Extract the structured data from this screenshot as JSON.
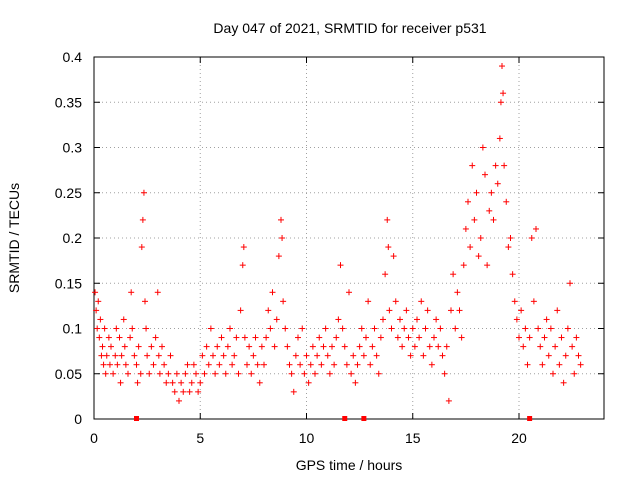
{
  "chart_data": {
    "type": "scatter",
    "title": "Day 047 of 2021, SRMTID for receiver p531",
    "xlabel": "GPS time / hours",
    "ylabel": "SRMTID / TECUs",
    "xlim": [
      0,
      24
    ],
    "ylim": [
      0,
      0.4
    ],
    "grid": true,
    "marker": "+",
    "marker_color": "#ff0000",
    "x_ticks": [
      0,
      5,
      10,
      15,
      20
    ],
    "x_tick_labels": [
      "0",
      "5",
      "10",
      "15",
      "20"
    ],
    "y_ticks": [
      0,
      0.05,
      0.1,
      0.15,
      0.2,
      0.25,
      0.3,
      0.35,
      0.4
    ],
    "y_tick_labels": [
      "0",
      "0.05",
      "0.1",
      "0.15",
      "0.2",
      "0.25",
      "0.3",
      "0.35",
      "0.4"
    ],
    "gap_markers_x": [
      2.0,
      11.8,
      12.7,
      20.5
    ],
    "series": [
      {
        "name": "SRMTID",
        "points": [
          [
            0.05,
            0.14
          ],
          [
            0.1,
            0.12
          ],
          [
            0.15,
            0.1
          ],
          [
            0.2,
            0.13
          ],
          [
            0.25,
            0.09
          ],
          [
            0.3,
            0.11
          ],
          [
            0.35,
            0.07
          ],
          [
            0.4,
            0.08
          ],
          [
            0.45,
            0.06
          ],
          [
            0.5,
            0.1
          ],
          [
            0.55,
            0.05
          ],
          [
            0.6,
            0.07
          ],
          [
            0.7,
            0.09
          ],
          [
            0.75,
            0.06
          ],
          [
            0.8,
            0.08
          ],
          [
            0.9,
            0.05
          ],
          [
            1.0,
            0.07
          ],
          [
            1.05,
            0.1
          ],
          [
            1.1,
            0.06
          ],
          [
            1.2,
            0.09
          ],
          [
            1.25,
            0.04
          ],
          [
            1.3,
            0.07
          ],
          [
            1.4,
            0.11
          ],
          [
            1.45,
            0.08
          ],
          [
            1.5,
            0.06
          ],
          [
            1.6,
            0.05
          ],
          [
            1.7,
            0.09
          ],
          [
            1.75,
            0.14
          ],
          [
            1.8,
            0.1
          ],
          [
            1.9,
            0.07
          ],
          [
            2.0,
            0.06
          ],
          [
            2.05,
            0.04
          ],
          [
            2.1,
            0.08
          ],
          [
            2.2,
            0.05
          ],
          [
            2.25,
            0.19
          ],
          [
            2.3,
            0.22
          ],
          [
            2.35,
            0.25
          ],
          [
            2.4,
            0.13
          ],
          [
            2.45,
            0.1
          ],
          [
            2.5,
            0.07
          ],
          [
            2.6,
            0.05
          ],
          [
            2.7,
            0.08
          ],
          [
            2.8,
            0.06
          ],
          [
            2.9,
            0.09
          ],
          [
            3.0,
            0.14
          ],
          [
            3.05,
            0.07
          ],
          [
            3.1,
            0.05
          ],
          [
            3.2,
            0.08
          ],
          [
            3.3,
            0.06
          ],
          [
            3.4,
            0.04
          ],
          [
            3.5,
            0.05
          ],
          [
            3.6,
            0.07
          ],
          [
            3.7,
            0.04
          ],
          [
            3.8,
            0.03
          ],
          [
            3.9,
            0.05
          ],
          [
            4.0,
            0.02
          ],
          [
            4.1,
            0.04
          ],
          [
            4.2,
            0.03
          ],
          [
            4.3,
            0.05
          ],
          [
            4.4,
            0.06
          ],
          [
            4.5,
            0.03
          ],
          [
            4.6,
            0.04
          ],
          [
            4.7,
            0.06
          ],
          [
            4.8,
            0.05
          ],
          [
            4.9,
            0.03
          ],
          [
            5.0,
            0.04
          ],
          [
            5.1,
            0.07
          ],
          [
            5.2,
            0.05
          ],
          [
            5.3,
            0.08
          ],
          [
            5.4,
            0.06
          ],
          [
            5.5,
            0.1
          ],
          [
            5.6,
            0.07
          ],
          [
            5.7,
            0.05
          ],
          [
            5.8,
            0.08
          ],
          [
            5.9,
            0.06
          ],
          [
            6.0,
            0.09
          ],
          [
            6.1,
            0.07
          ],
          [
            6.2,
            0.05
          ],
          [
            6.3,
            0.08
          ],
          [
            6.4,
            0.1
          ],
          [
            6.5,
            0.06
          ],
          [
            6.6,
            0.07
          ],
          [
            6.7,
            0.09
          ],
          [
            6.8,
            0.05
          ],
          [
            6.9,
            0.12
          ],
          [
            7.0,
            0.17
          ],
          [
            7.05,
            0.19
          ],
          [
            7.1,
            0.09
          ],
          [
            7.2,
            0.06
          ],
          [
            7.3,
            0.08
          ],
          [
            7.4,
            0.05
          ],
          [
            7.5,
            0.07
          ],
          [
            7.6,
            0.09
          ],
          [
            7.7,
            0.06
          ],
          [
            7.8,
            0.04
          ],
          [
            7.9,
            0.08
          ],
          [
            8.0,
            0.06
          ],
          [
            8.1,
            0.09
          ],
          [
            8.2,
            0.12
          ],
          [
            8.3,
            0.1
          ],
          [
            8.4,
            0.14
          ],
          [
            8.5,
            0.08
          ],
          [
            8.6,
            0.11
          ],
          [
            8.7,
            0.18
          ],
          [
            8.8,
            0.22
          ],
          [
            8.85,
            0.2
          ],
          [
            8.9,
            0.13
          ],
          [
            9.0,
            0.1
          ],
          [
            9.1,
            0.08
          ],
          [
            9.2,
            0.06
          ],
          [
            9.3,
            0.05
          ],
          [
            9.4,
            0.03
          ],
          [
            9.5,
            0.07
          ],
          [
            9.6,
            0.09
          ],
          [
            9.7,
            0.06
          ],
          [
            9.8,
            0.1
          ],
          [
            9.9,
            0.05
          ],
          [
            10.0,
            0.07
          ],
          [
            10.1,
            0.04
          ],
          [
            10.2,
            0.06
          ],
          [
            10.3,
            0.08
          ],
          [
            10.4,
            0.05
          ],
          [
            10.5,
            0.07
          ],
          [
            10.6,
            0.09
          ],
          [
            10.7,
            0.06
          ],
          [
            10.8,
            0.08
          ],
          [
            10.9,
            0.1
          ],
          [
            11.0,
            0.07
          ],
          [
            11.1,
            0.05
          ],
          [
            11.2,
            0.08
          ],
          [
            11.3,
            0.06
          ],
          [
            11.4,
            0.09
          ],
          [
            11.5,
            0.11
          ],
          [
            11.6,
            0.17
          ],
          [
            11.7,
            0.1
          ],
          [
            11.8,
            0.08
          ],
          [
            11.9,
            0.06
          ],
          [
            12.0,
            0.14
          ],
          [
            12.1,
            0.05
          ],
          [
            12.2,
            0.07
          ],
          [
            12.3,
            0.04
          ],
          [
            12.4,
            0.06
          ],
          [
            12.5,
            0.08
          ],
          [
            12.6,
            0.1
          ],
          [
            12.7,
            0.07
          ],
          [
            12.8,
            0.09
          ],
          [
            12.9,
            0.13
          ],
          [
            13.0,
            0.06
          ],
          [
            13.1,
            0.08
          ],
          [
            13.2,
            0.1
          ],
          [
            13.3,
            0.07
          ],
          [
            13.4,
            0.05
          ],
          [
            13.5,
            0.09
          ],
          [
            13.6,
            0.11
          ],
          [
            13.7,
            0.16
          ],
          [
            13.8,
            0.22
          ],
          [
            13.85,
            0.19
          ],
          [
            13.9,
            0.12
          ],
          [
            14.0,
            0.1
          ],
          [
            14.1,
            0.18
          ],
          [
            14.2,
            0.13
          ],
          [
            14.3,
            0.09
          ],
          [
            14.4,
            0.11
          ],
          [
            14.5,
            0.08
          ],
          [
            14.6,
            0.1
          ],
          [
            14.7,
            0.12
          ],
          [
            14.8,
            0.09
          ],
          [
            14.9,
            0.07
          ],
          [
            15.0,
            0.1
          ],
          [
            15.1,
            0.08
          ],
          [
            15.2,
            0.11
          ],
          [
            15.3,
            0.09
          ],
          [
            15.4,
            0.13
          ],
          [
            15.5,
            0.07
          ],
          [
            15.6,
            0.1
          ],
          [
            15.7,
            0.12
          ],
          [
            15.8,
            0.08
          ],
          [
            15.9,
            0.06
          ],
          [
            16.0,
            0.09
          ],
          [
            16.1,
            0.11
          ],
          [
            16.2,
            0.08
          ],
          [
            16.3,
            0.1
          ],
          [
            16.4,
            0.07
          ],
          [
            16.5,
            0.05
          ],
          [
            16.6,
            0.08
          ],
          [
            16.7,
            0.02
          ],
          [
            16.8,
            0.12
          ],
          [
            16.9,
            0.16
          ],
          [
            17.0,
            0.1
          ],
          [
            17.1,
            0.14
          ],
          [
            17.2,
            0.12
          ],
          [
            17.3,
            0.09
          ],
          [
            17.4,
            0.17
          ],
          [
            17.5,
            0.21
          ],
          [
            17.6,
            0.24
          ],
          [
            17.7,
            0.19
          ],
          [
            17.8,
            0.28
          ],
          [
            17.9,
            0.22
          ],
          [
            18.0,
            0.25
          ],
          [
            18.1,
            0.18
          ],
          [
            18.2,
            0.2
          ],
          [
            18.3,
            0.3
          ],
          [
            18.4,
            0.27
          ],
          [
            18.5,
            0.17
          ],
          [
            18.6,
            0.23
          ],
          [
            18.7,
            0.25
          ],
          [
            18.8,
            0.22
          ],
          [
            18.9,
            0.28
          ],
          [
            19.0,
            0.26
          ],
          [
            19.1,
            0.31
          ],
          [
            19.15,
            0.35
          ],
          [
            19.2,
            0.39
          ],
          [
            19.25,
            0.36
          ],
          [
            19.3,
            0.28
          ],
          [
            19.4,
            0.24
          ],
          [
            19.5,
            0.19
          ],
          [
            19.6,
            0.2
          ],
          [
            19.7,
            0.16
          ],
          [
            19.8,
            0.13
          ],
          [
            19.9,
            0.11
          ],
          [
            20.0,
            0.09
          ],
          [
            20.1,
            0.12
          ],
          [
            20.2,
            0.08
          ],
          [
            20.3,
            0.1
          ],
          [
            20.4,
            0.06
          ],
          [
            20.5,
            0.09
          ],
          [
            20.6,
            0.2
          ],
          [
            20.7,
            0.13
          ],
          [
            20.8,
            0.21
          ],
          [
            20.9,
            0.1
          ],
          [
            21.0,
            0.08
          ],
          [
            21.1,
            0.06
          ],
          [
            21.2,
            0.09
          ],
          [
            21.3,
            0.11
          ],
          [
            21.4,
            0.07
          ],
          [
            21.5,
            0.1
          ],
          [
            21.6,
            0.05
          ],
          [
            21.7,
            0.08
          ],
          [
            21.8,
            0.12
          ],
          [
            21.9,
            0.06
          ],
          [
            22.0,
            0.09
          ],
          [
            22.1,
            0.04
          ],
          [
            22.2,
            0.07
          ],
          [
            22.3,
            0.1
          ],
          [
            22.4,
            0.15
          ],
          [
            22.5,
            0.08
          ],
          [
            22.6,
            0.05
          ],
          [
            22.7,
            0.09
          ],
          [
            22.8,
            0.07
          ],
          [
            22.9,
            0.06
          ]
        ]
      }
    ]
  }
}
